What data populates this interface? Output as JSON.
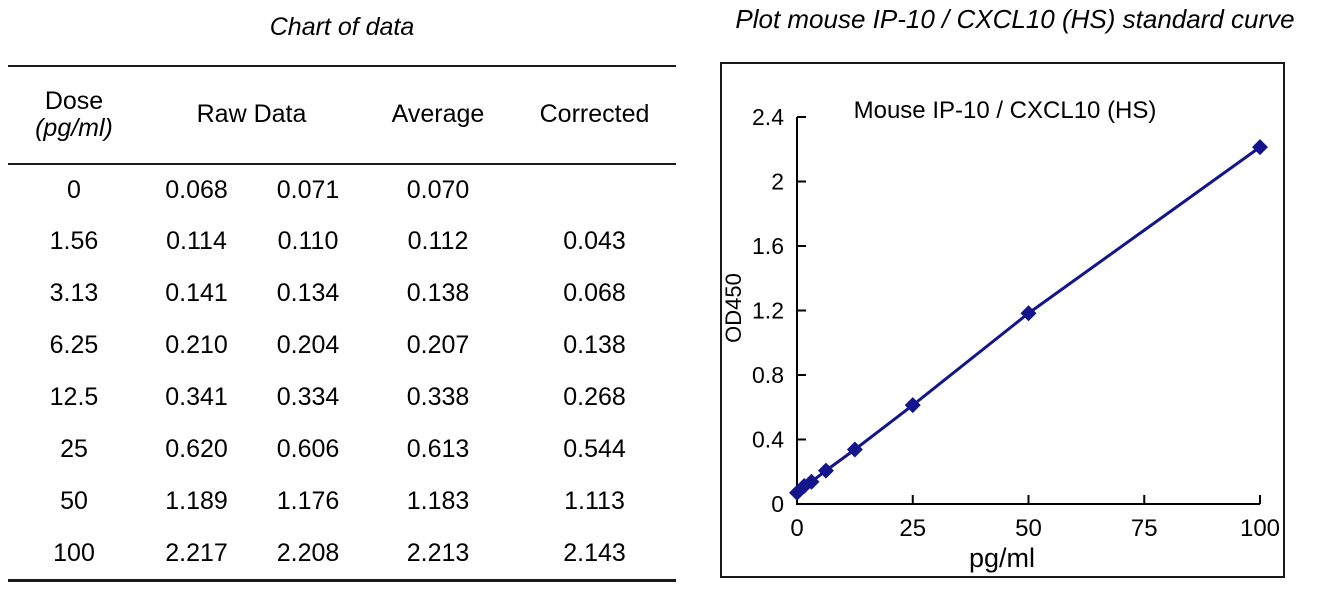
{
  "left_panel": {
    "title": "Chart of data",
    "table": {
      "headers": {
        "dose": "Dose",
        "dose_unit": "(pg/ml)",
        "raw": "Raw Data",
        "average": "Average",
        "corrected": "Corrected"
      },
      "rows": [
        {
          "dose": "0",
          "raw1": "0.068",
          "raw2": "0.071",
          "average": "0.070",
          "corrected": ""
        },
        {
          "dose": "1.56",
          "raw1": "0.114",
          "raw2": "0.110",
          "average": "0.112",
          "corrected": "0.043"
        },
        {
          "dose": "3.13",
          "raw1": "0.141",
          "raw2": "0.134",
          "average": "0.138",
          "corrected": "0.068"
        },
        {
          "dose": "6.25",
          "raw1": "0.210",
          "raw2": "0.204",
          "average": "0.207",
          "corrected": "0.138"
        },
        {
          "dose": "12.5",
          "raw1": "0.341",
          "raw2": "0.334",
          "average": "0.338",
          "corrected": "0.268"
        },
        {
          "dose": "25",
          "raw1": "0.620",
          "raw2": "0.606",
          "average": "0.613",
          "corrected": "0.544"
        },
        {
          "dose": "50",
          "raw1": "1.189",
          "raw2": "1.176",
          "average": "1.183",
          "corrected": "1.113"
        },
        {
          "dose": "100",
          "raw1": "2.217",
          "raw2": "2.208",
          "average": "2.213",
          "corrected": "2.143"
        }
      ]
    }
  },
  "right_panel": {
    "title": "Plot mouse IP-10 / CXCL10 (HS) standard curve"
  },
  "chart_data": {
    "type": "line",
    "title": "Mouse IP-10 / CXCL10 (HS)",
    "xlabel": "pg/ml",
    "ylabel": "OD450",
    "x": [
      0,
      1.56,
      3.13,
      6.25,
      12.5,
      25,
      50,
      100
    ],
    "y": [
      0.07,
      0.112,
      0.138,
      0.207,
      0.338,
      0.613,
      1.183,
      2.213
    ],
    "xlim": [
      0,
      100
    ],
    "ylim": [
      0,
      2.4
    ],
    "xticks": [
      {
        "v": 0,
        "label": "0"
      },
      {
        "v": 25,
        "label": "25"
      },
      {
        "v": 50,
        "label": "50"
      },
      {
        "v": 75,
        "label": "75"
      },
      {
        "v": 100,
        "label": "100"
      }
    ],
    "yticks": [
      {
        "v": 0,
        "label": "0"
      },
      {
        "v": 0.4,
        "label": "0.4"
      },
      {
        "v": 0.8,
        "label": "0.8"
      },
      {
        "v": 1.2,
        "label": "1.2"
      },
      {
        "v": 1.6,
        "label": "1.6"
      },
      {
        "v": 2,
        "label": "2"
      },
      {
        "v": 2.4,
        "label": "2.4"
      }
    ],
    "line_color": "#14148C",
    "marker": "diamond",
    "grid": false,
    "legend": "none"
  }
}
